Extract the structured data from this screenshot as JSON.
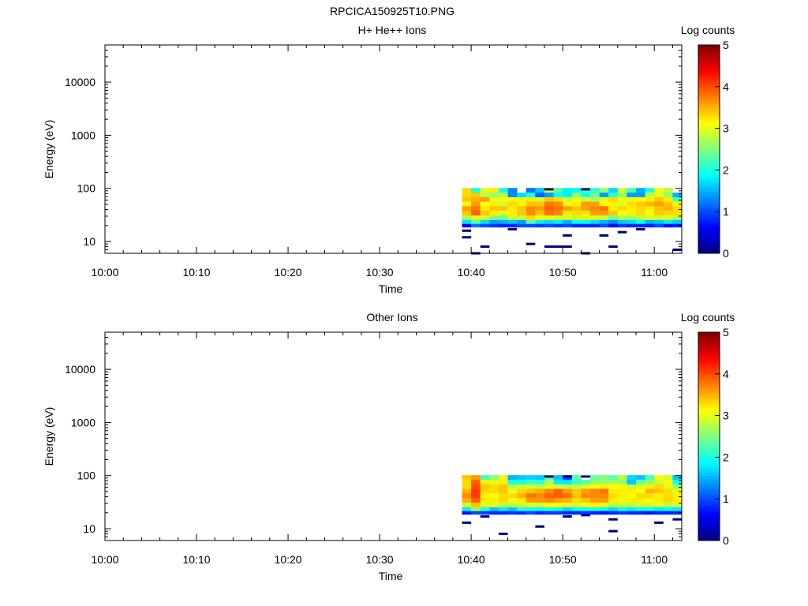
{
  "page_title": "RPCICA150925T10.PNG",
  "colormap": [
    "#00007f",
    "#0000ff",
    "#007fff",
    "#00ffff",
    "#7fff7f",
    "#ffff00",
    "#ff7f00",
    "#ff0000",
    "#7f0000"
  ],
  "chart_data": [
    {
      "type": "heatmap",
      "title": "H+ He++ Ions",
      "xlabel": "Time",
      "ylabel": "Energy (eV)",
      "y_scale": "log",
      "ylim": [
        6,
        50000
      ],
      "xlim": [
        "10:00",
        "11:03"
      ],
      "x_ticks": [
        "10:00",
        "10:10",
        "10:20",
        "10:30",
        "10:40",
        "10:50",
        "11:00"
      ],
      "y_ticks": [
        "10",
        "100",
        "1000",
        "10000"
      ],
      "colorbar": {
        "label": "Log counts",
        "range": [
          0,
          5
        ],
        "ticks": [
          "0",
          "1",
          "2",
          "3",
          "4",
          "5"
        ]
      },
      "time_bins": [
        "10:39",
        "10:40",
        "10:41",
        "10:42",
        "10:43",
        "10:44",
        "10:45",
        "10:46",
        "10:47",
        "10:48",
        "10:49",
        "10:50",
        "10:51",
        "10:52",
        "10:53",
        "10:54",
        "10:55",
        "10:56",
        "10:57",
        "10:58",
        "10:59",
        "11:00",
        "11:01",
        "11:02"
      ],
      "energy_bins": [
        92,
        75,
        62,
        51,
        42,
        34,
        28,
        23,
        20
      ],
      "values": [
        [
          3.3,
          2.0,
          3.0,
          3.2,
          2.0,
          1.3,
          0.0,
          1.2,
          1.6,
          3.0,
          2.3,
          1.8,
          1.9,
          2.3,
          2.1,
          2.6,
          1.7,
          2.9,
          2.2,
          1.5,
          2.0,
          3.1,
          2.8,
          0.0
        ],
        [
          3.3,
          3.4,
          2.8,
          2.6,
          2.7,
          1.3,
          1.7,
          2.0,
          1.1,
          1.4,
          1.9,
          1.8,
          2.6,
          1.9,
          2.4,
          1.4,
          2.1,
          2.6,
          1.4,
          1.4,
          2.8,
          3.0,
          2.6,
          1.5
        ],
        [
          3.4,
          3.5,
          3.6,
          3.0,
          3.1,
          3.1,
          3.0,
          3.2,
          2.9,
          3.4,
          3.3,
          2.9,
          3.0,
          2.9,
          2.7,
          3.0,
          3.3,
          3.0,
          3.1,
          3.1,
          3.2,
          3.4,
          3.2,
          2.2
        ],
        [
          3.1,
          3.6,
          3.1,
          3.2,
          2.9,
          3.3,
          3.2,
          3.4,
          3.4,
          3.8,
          3.7,
          3.1,
          3.2,
          3.6,
          3.6,
          3.1,
          3.2,
          3.0,
          3.3,
          3.4,
          3.5,
          3.6,
          3.4,
          3.1
        ],
        [
          3.6,
          3.8,
          3.2,
          3.4,
          3.4,
          3.2,
          3.4,
          3.7,
          3.6,
          3.9,
          3.8,
          3.6,
          3.4,
          3.6,
          3.7,
          3.8,
          3.2,
          3.3,
          3.2,
          3.3,
          3.2,
          3.4,
          3.5,
          3.3
        ],
        [
          3.4,
          3.9,
          3.4,
          3.2,
          3.0,
          3.2,
          3.4,
          3.7,
          3.4,
          3.8,
          3.7,
          3.2,
          3.3,
          3.2,
          3.6,
          3.6,
          3.4,
          3.1,
          3.2,
          3.3,
          3.1,
          3.4,
          3.3,
          3.3
        ],
        [
          2.7,
          3.0,
          2.9,
          2.5,
          2.4,
          2.9,
          2.8,
          3.3,
          3.0,
          3.0,
          2.9,
          2.9,
          2.9,
          3.0,
          3.0,
          2.8,
          2.4,
          2.7,
          2.6,
          2.8,
          2.9,
          2.9,
          3.0,
          2.7
        ],
        [
          1.7,
          2.3,
          1.7,
          1.4,
          1.5,
          1.6,
          1.4,
          2.3,
          1.8,
          1.7,
          1.8,
          1.5,
          1.9,
          1.9,
          1.7,
          1.5,
          1.3,
          1.6,
          1.7,
          1.9,
          1.5,
          1.6,
          1.8,
          1.6
        ],
        [
          0.6,
          1.2,
          1.0,
          0.9,
          0.8,
          0.8,
          1.0,
          1.0,
          0.9,
          1.0,
          0.9,
          1.0,
          0.8,
          0.8,
          0.8,
          1.0,
          0.7,
          0.9,
          0.8,
          0.8,
          0.8,
          1.0,
          0.7,
          0.8
        ]
      ],
      "sparse_points": [
        {
          "t": "10:39",
          "e": 16
        },
        {
          "t": "10:39",
          "e": 12
        },
        {
          "t": "10:41",
          "e": 8
        },
        {
          "t": "10:46",
          "e": 9
        },
        {
          "t": "10:48",
          "e": 8
        },
        {
          "t": "10:49",
          "e": 8
        },
        {
          "t": "10:50",
          "e": 8
        },
        {
          "t": "10:50",
          "e": 13
        },
        {
          "t": "10:52",
          "e": 6
        },
        {
          "t": "10:54",
          "e": 13
        },
        {
          "t": "10:55",
          "e": 8
        },
        {
          "t": "10:56",
          "e": 15
        },
        {
          "t": "10:40",
          "e": 6
        },
        {
          "t": "11:02",
          "e": 7
        },
        {
          "t": "10:48",
          "e": 96
        },
        {
          "t": "10:52",
          "e": 96
        },
        {
          "t": "10:44",
          "e": 17
        },
        {
          "t": "10:58",
          "e": 17
        }
      ]
    },
    {
      "type": "heatmap",
      "title": "Other Ions",
      "xlabel": "Time",
      "ylabel": "Energy (eV)",
      "y_scale": "log",
      "ylim": [
        6,
        50000
      ],
      "xlim": [
        "10:00",
        "11:03"
      ],
      "x_ticks": [
        "10:00",
        "10:10",
        "10:20",
        "10:30",
        "10:40",
        "10:50",
        "11:00"
      ],
      "y_ticks": [
        "10",
        "100",
        "1000",
        "10000"
      ],
      "colorbar": {
        "label": "Log counts",
        "range": [
          0,
          5
        ],
        "ticks": [
          "0",
          "1",
          "2",
          "3",
          "4",
          "5"
        ]
      },
      "time_bins": [
        "10:39",
        "10:40",
        "10:41",
        "10:42",
        "10:43",
        "10:44",
        "10:45",
        "10:46",
        "10:47",
        "10:48",
        "10:49",
        "10:50",
        "10:51",
        "10:52",
        "10:53",
        "10:54",
        "10:55",
        "10:56",
        "10:57",
        "10:58",
        "10:59",
        "11:00",
        "11:01",
        "11:02"
      ],
      "energy_bins": [
        92,
        75,
        62,
        51,
        42,
        34,
        28,
        23,
        20
      ],
      "values": [
        [
          3.4,
          3.6,
          2.2,
          2.6,
          3.0,
          1.5,
          1.6,
          1.7,
          1.6,
          2.4,
          1.6,
          0.9,
          2.3,
          0.0,
          2.4,
          2.5,
          2.3,
          2.8,
          1.7,
          1.6,
          2.2,
          3.1,
          2.9,
          1.6
        ],
        [
          3.3,
          3.9,
          3.2,
          3.0,
          3.2,
          2.0,
          2.0,
          2.2,
          2.1,
          2.7,
          1.8,
          1.8,
          2.2,
          2.3,
          2.6,
          2.6,
          2.7,
          2.6,
          1.6,
          2.4,
          2.6,
          2.9,
          3.1,
          2.0
        ],
        [
          3.3,
          4.0,
          3.4,
          3.3,
          3.4,
          2.8,
          2.9,
          2.9,
          2.8,
          3.0,
          2.9,
          2.8,
          2.8,
          3.0,
          3.1,
          3.2,
          3.1,
          3.1,
          2.8,
          3.0,
          3.2,
          3.3,
          3.0,
          2.6
        ],
        [
          3.5,
          4.1,
          3.3,
          3.3,
          3.4,
          3.0,
          3.3,
          3.4,
          3.5,
          3.7,
          3.9,
          3.6,
          3.4,
          3.6,
          3.7,
          3.8,
          3.2,
          3.2,
          3.2,
          3.1,
          3.5,
          3.4,
          3.3,
          3.0
        ],
        [
          3.7,
          4.1,
          3.2,
          3.1,
          3.3,
          3.3,
          3.5,
          3.8,
          3.7,
          3.9,
          3.9,
          3.8,
          3.4,
          3.7,
          3.7,
          3.7,
          3.3,
          3.2,
          3.1,
          3.3,
          3.3,
          3.2,
          3.3,
          3.2
        ],
        [
          3.5,
          3.9,
          3.2,
          3.2,
          3.3,
          3.1,
          3.2,
          3.6,
          3.6,
          3.7,
          3.6,
          3.5,
          3.3,
          3.4,
          3.6,
          3.6,
          3.2,
          3.0,
          3.2,
          3.2,
          3.1,
          3.2,
          3.3,
          3.2
        ],
        [
          2.9,
          3.4,
          3.0,
          3.0,
          2.8,
          2.8,
          2.9,
          3.0,
          2.9,
          3.1,
          3.1,
          3.0,
          2.9,
          3.1,
          3.2,
          3.0,
          2.8,
          2.9,
          2.8,
          2.9,
          2.9,
          3.0,
          2.8,
          2.9
        ],
        [
          1.8,
          2.6,
          2.0,
          1.6,
          1.8,
          1.6,
          2.0,
          1.9,
          1.9,
          2.0,
          1.9,
          1.7,
          1.9,
          1.9,
          2.0,
          1.9,
          1.7,
          1.9,
          1.8,
          1.9,
          1.9,
          1.8,
          1.9,
          1.8
        ],
        [
          0.7,
          1.0,
          0.9,
          0.8,
          0.8,
          0.9,
          0.8,
          1.0,
          0.8,
          0.9,
          0.9,
          0.8,
          0.8,
          0.9,
          0.8,
          0.7,
          0.8,
          0.9,
          0.8,
          0.8,
          0.7,
          0.8,
          0.8,
          0.8
        ]
      ],
      "sparse_points": [
        {
          "t": "10:39",
          "e": 13
        },
        {
          "t": "10:41",
          "e": 17
        },
        {
          "t": "10:43",
          "e": 8
        },
        {
          "t": "10:47",
          "e": 11
        },
        {
          "t": "10:50",
          "e": 17
        },
        {
          "t": "10:52",
          "e": 18
        },
        {
          "t": "10:55",
          "e": 15
        },
        {
          "t": "10:55",
          "e": 9
        },
        {
          "t": "11:00",
          "e": 13
        },
        {
          "t": "11:02",
          "e": 15
        },
        {
          "t": "10:48",
          "e": 96
        },
        {
          "t": "10:50",
          "e": 96
        },
        {
          "t": "10:52",
          "e": 96
        }
      ]
    }
  ]
}
